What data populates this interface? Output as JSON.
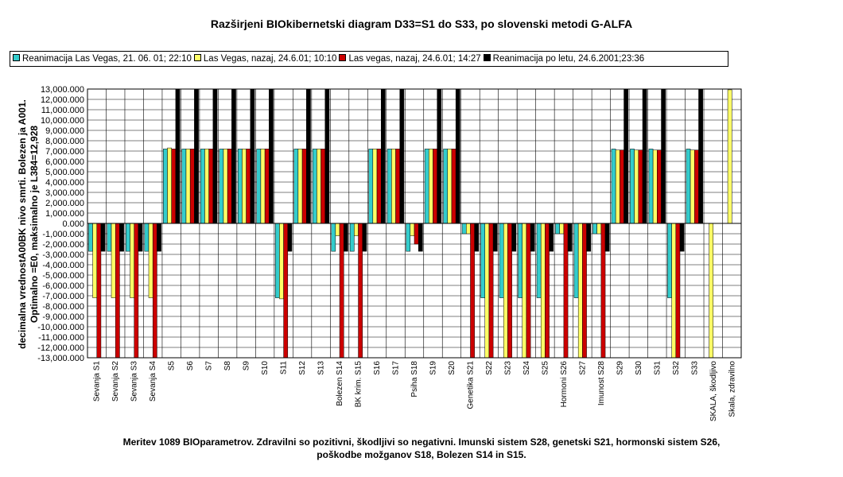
{
  "chart_data": {
    "type": "bar",
    "title": "Razširjeni BIOkibernetski diagram  D33=S1 do S33, po slovenski metodi G-ALFA",
    "ylabel_line1": "decimalna vrednostA00BK nivo smrti. Bolezen ja A001.",
    "ylabel_line2": "Optimalno =E0, maksimalno je L384=12,928",
    "caption_line1": "Meritev 1089 BIOparametrov. Zdravilni so pozitivni, škodljivi so negativni. Imunski sistem S28, genetski S21, hormonski sistem S26,",
    "caption_line2": "poškodbe možganov S18, Bolezen S14 in S15.",
    "ylim": [
      -13000,
      13000
    ],
    "ytick_step": 1000,
    "grid": true,
    "legend_position": "top",
    "categories": [
      "Sevanja S1",
      "Sevanja S2",
      "Sevanja S3",
      "Sevanja S4",
      "S5",
      "S6",
      "S7",
      "S8",
      "S9",
      "S10",
      "S11",
      "S12",
      "S13",
      "Bolezen S14",
      "BK krim. S15",
      "S16",
      "S17",
      "Psiha S18",
      "S19",
      "S20",
      "Genetika S21",
      "S22",
      "S23",
      "S24",
      "S25",
      "Hormoni S26",
      "S27",
      "Imunost S28",
      "S29",
      "S30",
      "S31",
      "S32",
      "S33",
      "SKALA, škodljivo",
      "Skala, zdravilno"
    ],
    "series": [
      {
        "name": "Reanimacija Las Vegas,  21. 06. 01; 22:10",
        "color": "#33CCCC",
        "values": [
          -2700,
          -2700,
          -2700,
          -2700,
          7200,
          7200,
          7200,
          7200,
          7200,
          7200,
          -7200,
          7200,
          7200,
          -2700,
          -2700,
          7200,
          7200,
          -2700,
          7200,
          7200,
          -1000,
          -7200,
          -7200,
          -7200,
          -7200,
          -1000,
          -7200,
          -1000,
          7200,
          7200,
          7200,
          -7200,
          7200,
          0,
          0
        ]
      },
      {
        "name": "Las Vegas, nazaj, 24.6.01; 10:10",
        "color": "#FFFF66",
        "values": [
          -7200,
          -7200,
          -7200,
          -7200,
          7300,
          7200,
          7200,
          7200,
          7200,
          7200,
          -7300,
          7200,
          7200,
          -1200,
          -1200,
          7200,
          7200,
          -1200,
          7200,
          7200,
          -1000,
          -13000,
          -13000,
          -13000,
          -13000,
          -1000,
          -13000,
          -1000,
          7100,
          7100,
          7100,
          -13000,
          7100,
          -13000,
          12928
        ]
      },
      {
        "name": "Las vegas, nazaj, 24.6.01; 14:27",
        "color": "#CC0000",
        "values": [
          -13000,
          -13000,
          -13000,
          -13000,
          7200,
          7200,
          7200,
          7200,
          7200,
          7200,
          -13000,
          7200,
          7200,
          -13000,
          -13000,
          7200,
          7200,
          -2000,
          7200,
          7200,
          -13000,
          -13000,
          -13000,
          -13000,
          -13000,
          -13000,
          -13000,
          -13000,
          7100,
          7100,
          7100,
          -13000,
          7100,
          0,
          0
        ]
      },
      {
        "name": "Reanimacija po letu, 24.6.2001;23:36",
        "color": "#000000",
        "values": [
          -2700,
          -2700,
          -2700,
          -2700,
          13000,
          13000,
          13000,
          13000,
          13000,
          13000,
          -2700,
          13000,
          13000,
          -2700,
          -2700,
          13000,
          13000,
          -2700,
          13000,
          13000,
          -2700,
          -2700,
          -2700,
          -2700,
          -2700,
          -2700,
          -2700,
          -2700,
          13000,
          13000,
          13000,
          -2700,
          13000,
          0,
          0
        ]
      }
    ]
  }
}
